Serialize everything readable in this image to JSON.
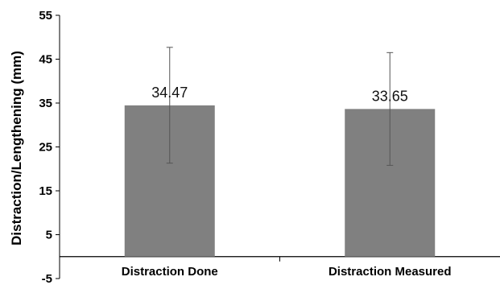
{
  "chart_data": {
    "type": "bar",
    "categories": [
      "Distraction Done",
      "Distraction Measured"
    ],
    "values": [
      34.47,
      33.65
    ],
    "data_labels": [
      "34.47",
      "33.65"
    ],
    "error_bars": [
      {
        "low": 21.3,
        "high": 47.7
      },
      {
        "low": 20.8,
        "high": 46.5
      }
    ],
    "title": "",
    "xlabel": "",
    "ylabel": "Distraction/Lengthening (mm)",
    "ylim": [
      -5,
      55
    ],
    "yticks": [
      -5,
      5,
      15,
      25,
      35,
      45,
      55
    ],
    "ytick_labels": [
      "-5",
      "5",
      "15",
      "25",
      "35",
      "45",
      "55"
    ],
    "bar_color": "#808080",
    "grid": false,
    "legend": "none"
  }
}
